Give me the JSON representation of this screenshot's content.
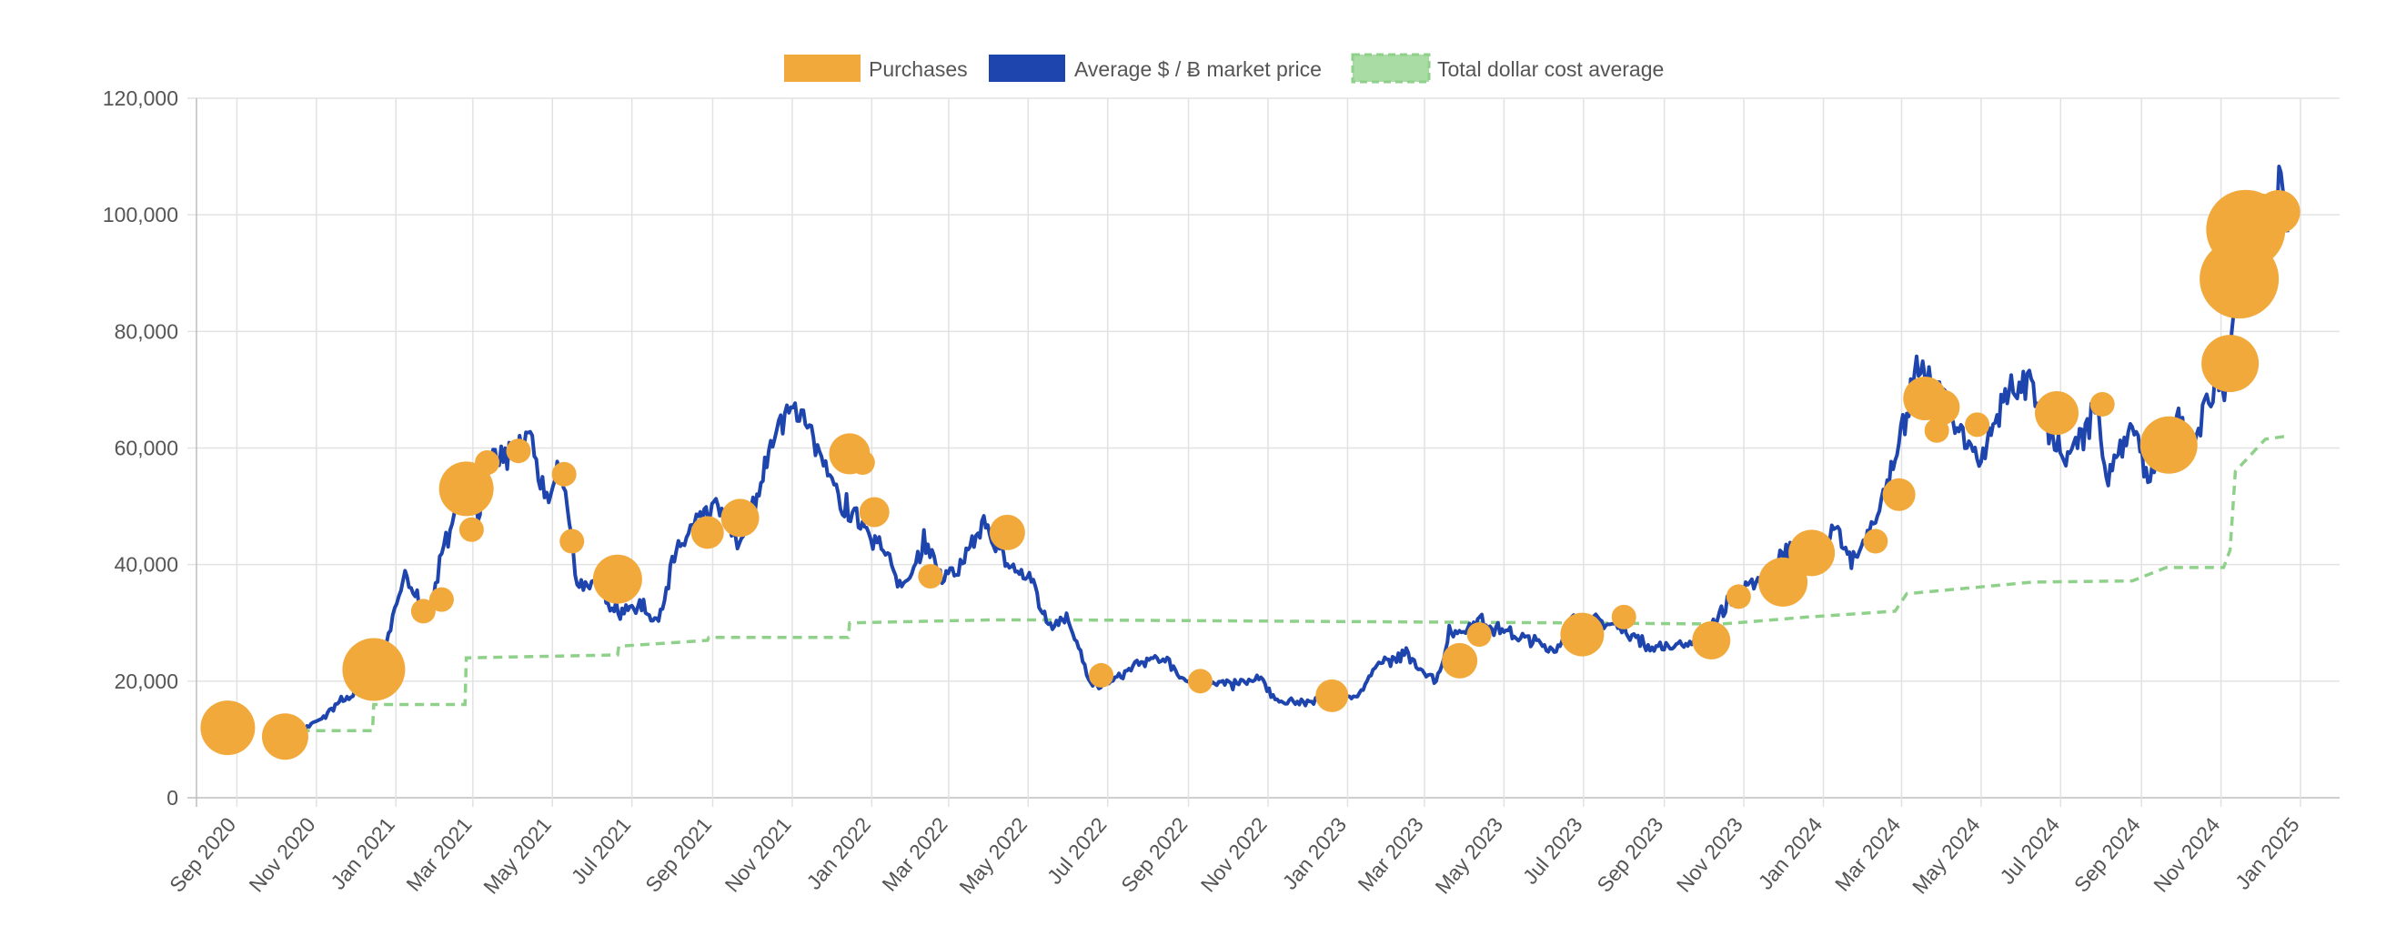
{
  "chart_data": {
    "type": "line",
    "title": "",
    "legend": {
      "position": "top-center",
      "items": [
        {
          "label": "Purchases",
          "color": "#f2a93b"
        },
        {
          "label": "Average $ / Ƀ market price",
          "color": "#1e44ad"
        },
        {
          "label": "Total dollar cost average",
          "color": "#8fd18a"
        }
      ]
    },
    "y_axis": {
      "min": 0,
      "max": 120000,
      "ticks": [
        "0",
        "20,000",
        "40,000",
        "60,000",
        "80,000",
        "100,000",
        "120,000"
      ]
    },
    "x_axis": {
      "start": "2020-08-01",
      "end": "2025-01-31",
      "tick_labels": [
        "Sep 2020",
        "Nov 2020",
        "Jan 2021",
        "Mar 2021",
        "May 2021",
        "Jul 2021",
        "Sep 2021",
        "Nov 2021",
        "Jan 2022",
        "Mar 2022",
        "May 2022",
        "Jul 2022",
        "Sep 2022",
        "Nov 2022",
        "Jan 2023",
        "Mar 2023",
        "May 2023",
        "Jul 2023",
        "Sep 2023",
        "Nov 2023",
        "Jan 2024",
        "Mar 2024",
        "May 2024",
        "Jul 2024",
        "Sep 2024",
        "Nov 2024",
        "Jan 2025"
      ],
      "tick_dates": [
        "2020-09-01",
        "2020-11-01",
        "2021-01-01",
        "2021-03-01",
        "2021-05-01",
        "2021-07-01",
        "2021-09-01",
        "2021-11-01",
        "2022-01-01",
        "2022-03-01",
        "2022-05-01",
        "2022-07-01",
        "2022-09-01",
        "2022-11-01",
        "2023-01-01",
        "2023-03-01",
        "2023-05-01",
        "2023-07-01",
        "2023-09-01",
        "2023-11-01",
        "2024-01-01",
        "2024-03-01",
        "2024-05-01",
        "2024-07-01",
        "2024-09-01",
        "2024-11-01",
        "2025-01-01"
      ]
    },
    "series": [
      {
        "name": "Average $ / Ƀ market price",
        "type": "line",
        "color": "#1e44ad",
        "points": [
          [
            "2020-10-20",
            11500
          ],
          [
            "2020-11-05",
            13500
          ],
          [
            "2020-11-20",
            16500
          ],
          [
            "2020-12-05",
            18500
          ],
          [
            "2020-12-20",
            23000
          ],
          [
            "2021-01-08",
            38000
          ],
          [
            "2021-01-25",
            31000
          ],
          [
            "2021-02-10",
            45000
          ],
          [
            "2021-02-21",
            57000
          ],
          [
            "2021-03-05",
            48000
          ],
          [
            "2021-03-15",
            59000
          ],
          [
            "2021-04-01",
            58000
          ],
          [
            "2021-04-14",
            63000
          ],
          [
            "2021-04-25",
            50000
          ],
          [
            "2021-05-08",
            57000
          ],
          [
            "2021-05-20",
            37000
          ],
          [
            "2021-06-05",
            36000
          ],
          [
            "2021-06-22",
            32000
          ],
          [
            "2021-07-10",
            33000
          ],
          [
            "2021-07-20",
            30000
          ],
          [
            "2021-08-01",
            40000
          ],
          [
            "2021-08-15",
            46000
          ],
          [
            "2021-09-05",
            50000
          ],
          [
            "2021-09-20",
            43000
          ],
          [
            "2021-10-05",
            52000
          ],
          [
            "2021-10-20",
            64000
          ],
          [
            "2021-11-08",
            67000
          ],
          [
            "2021-11-25",
            57000
          ],
          [
            "2021-12-08",
            50000
          ],
          [
            "2021-12-28",
            47000
          ],
          [
            "2022-01-10",
            42000
          ],
          [
            "2022-01-24",
            36000
          ],
          [
            "2022-02-10",
            44000
          ],
          [
            "2022-02-24",
            38000
          ],
          [
            "2022-03-10",
            39000
          ],
          [
            "2022-03-28",
            47000
          ],
          [
            "2022-04-15",
            40000
          ],
          [
            "2022-05-05",
            37000
          ],
          [
            "2022-05-15",
            30000
          ],
          [
            "2022-06-01",
            31000
          ],
          [
            "2022-06-18",
            19000
          ],
          [
            "2022-07-05",
            20000
          ],
          [
            "2022-07-25",
            23000
          ],
          [
            "2022-08-14",
            24000
          ],
          [
            "2022-08-30",
            20000
          ],
          [
            "2022-09-15",
            20000
          ],
          [
            "2022-10-05",
            19500
          ],
          [
            "2022-10-25",
            20500
          ],
          [
            "2022-11-08",
            16500
          ],
          [
            "2022-11-25",
            16500
          ],
          [
            "2022-12-20",
            16800
          ],
          [
            "2023-01-10",
            17500
          ],
          [
            "2023-01-25",
            23000
          ],
          [
            "2023-02-15",
            24500
          ],
          [
            "2023-03-10",
            20000
          ],
          [
            "2023-03-20",
            28000
          ],
          [
            "2023-04-14",
            30500
          ],
          [
            "2023-05-01",
            28500
          ],
          [
            "2023-05-20",
            27000
          ],
          [
            "2023-06-10",
            25500
          ],
          [
            "2023-06-22",
            30500
          ],
          [
            "2023-07-15",
            30000
          ],
          [
            "2023-08-01",
            29200
          ],
          [
            "2023-08-18",
            26000
          ],
          [
            "2023-09-10",
            25800
          ],
          [
            "2023-10-01",
            27500
          ],
          [
            "2023-10-24",
            34500
          ],
          [
            "2023-11-15",
            37000
          ],
          [
            "2023-12-08",
            43500
          ],
          [
            "2023-12-25",
            42500
          ],
          [
            "2024-01-12",
            46000
          ],
          [
            "2024-01-24",
            40000
          ],
          [
            "2024-02-10",
            47000
          ],
          [
            "2024-02-28",
            62000
          ],
          [
            "2024-03-14",
            73000
          ],
          [
            "2024-03-30",
            70000
          ],
          [
            "2024-04-17",
            62000
          ],
          [
            "2024-05-01",
            58000
          ],
          [
            "2024-05-21",
            70000
          ],
          [
            "2024-06-07",
            71000
          ],
          [
            "2024-06-25",
            61000
          ],
          [
            "2024-07-05",
            57000
          ],
          [
            "2024-07-29",
            68000
          ],
          [
            "2024-08-05",
            54000
          ],
          [
            "2024-08-25",
            64000
          ],
          [
            "2024-09-06",
            54000
          ],
          [
            "2024-09-28",
            65500
          ],
          [
            "2024-10-10",
            60500
          ],
          [
            "2024-10-29",
            72000
          ],
          [
            "2024-11-05",
            69000
          ],
          [
            "2024-11-12",
            88000
          ],
          [
            "2024-11-22",
            98000
          ],
          [
            "2024-12-05",
            97000
          ],
          [
            "2024-12-17",
            106000
          ],
          [
            "2024-12-22",
            97000
          ]
        ]
      },
      {
        "name": "Total dollar cost average",
        "type": "step-dashed",
        "color": "#8fd18a",
        "points": [
          [
            "2020-10-20",
            11500
          ],
          [
            "2020-12-14",
            11500
          ],
          [
            "2020-12-15",
            16000
          ],
          [
            "2021-02-23",
            16000
          ],
          [
            "2021-02-24",
            24000
          ],
          [
            "2021-06-20",
            24500
          ],
          [
            "2021-06-21",
            26000
          ],
          [
            "2021-08-28",
            27000
          ],
          [
            "2021-08-29",
            27500
          ],
          [
            "2021-12-14",
            27500
          ],
          [
            "2021-12-15",
            30000
          ],
          [
            "2022-04-01",
            30500
          ],
          [
            "2022-06-01",
            30500
          ],
          [
            "2023-06-22",
            30000
          ],
          [
            "2023-10-15",
            29800
          ],
          [
            "2023-12-20",
            31000
          ],
          [
            "2024-02-25",
            32000
          ],
          [
            "2024-03-05",
            35000
          ],
          [
            "2024-06-10",
            37000
          ],
          [
            "2024-08-25",
            37200
          ],
          [
            "2024-09-20",
            39500
          ],
          [
            "2024-11-03",
            39500
          ],
          [
            "2024-11-08",
            42500
          ],
          [
            "2024-11-12",
            56000
          ],
          [
            "2024-12-05",
            61500
          ],
          [
            "2024-12-20",
            62000
          ]
        ]
      },
      {
        "name": "Purchases",
        "type": "bubble",
        "color": "#f2a93b",
        "points": [
          {
            "date": "2020-08-25",
            "value": 12000,
            "size": 1.0
          },
          {
            "date": "2020-10-08",
            "value": 10500,
            "size": 0.85
          },
          {
            "date": "2020-12-15",
            "value": 22000,
            "size": 1.15
          },
          {
            "date": "2021-01-22",
            "value": 32000,
            "size": 0.45
          },
          {
            "date": "2021-02-05",
            "value": 34000,
            "size": 0.45
          },
          {
            "date": "2021-02-24",
            "value": 53000,
            "size": 1.0
          },
          {
            "date": "2021-02-28",
            "value": 46000,
            "size": 0.45
          },
          {
            "date": "2021-03-12",
            "value": 57500,
            "size": 0.45
          },
          {
            "date": "2021-04-05",
            "value": 59500,
            "size": 0.45
          },
          {
            "date": "2021-05-10",
            "value": 55500,
            "size": 0.45
          },
          {
            "date": "2021-05-16",
            "value": 44000,
            "size": 0.45
          },
          {
            "date": "2021-06-20",
            "value": 37500,
            "size": 0.9
          },
          {
            "date": "2021-08-28",
            "value": 45500,
            "size": 0.6
          },
          {
            "date": "2021-09-22",
            "value": 48000,
            "size": 0.7
          },
          {
            "date": "2021-12-15",
            "value": 59000,
            "size": 0.75
          },
          {
            "date": "2021-12-25",
            "value": 57500,
            "size": 0.45
          },
          {
            "date": "2022-01-03",
            "value": 49000,
            "size": 0.55
          },
          {
            "date": "2022-02-15",
            "value": 38000,
            "size": 0.45
          },
          {
            "date": "2022-04-15",
            "value": 45500,
            "size": 0.65
          },
          {
            "date": "2022-06-26",
            "value": 21000,
            "size": 0.45
          },
          {
            "date": "2022-09-10",
            "value": 20000,
            "size": 0.45
          },
          {
            "date": "2022-12-20",
            "value": 17500,
            "size": 0.6
          },
          {
            "date": "2023-03-28",
            "value": 23500,
            "size": 0.65
          },
          {
            "date": "2023-04-12",
            "value": 28000,
            "size": 0.45
          },
          {
            "date": "2023-06-30",
            "value": 28000,
            "size": 0.8
          },
          {
            "date": "2023-08-01",
            "value": 31000,
            "size": 0.45
          },
          {
            "date": "2023-10-07",
            "value": 27000,
            "size": 0.7
          },
          {
            "date": "2023-10-28",
            "value": 34500,
            "size": 0.45
          },
          {
            "date": "2023-12-01",
            "value": 37000,
            "size": 0.9
          },
          {
            "date": "2023-12-23",
            "value": 42000,
            "size": 0.85
          },
          {
            "date": "2024-02-10",
            "value": 44000,
            "size": 0.45
          },
          {
            "date": "2024-02-28",
            "value": 52000,
            "size": 0.6
          },
          {
            "date": "2024-03-19",
            "value": 68500,
            "size": 0.8
          },
          {
            "date": "2024-03-28",
            "value": 63000,
            "size": 0.45
          },
          {
            "date": "2024-04-01",
            "value": 67000,
            "size": 0.65
          },
          {
            "date": "2024-04-28",
            "value": 64000,
            "size": 0.45
          },
          {
            "date": "2024-06-28",
            "value": 66000,
            "size": 0.8
          },
          {
            "date": "2024-08-02",
            "value": 67500,
            "size": 0.45
          },
          {
            "date": "2024-09-22",
            "value": 60500,
            "size": 1.05
          },
          {
            "date": "2024-11-08",
            "value": 74500,
            "size": 1.05
          },
          {
            "date": "2024-11-15",
            "value": 89000,
            "size": 1.45
          },
          {
            "date": "2024-11-20",
            "value": 97500,
            "size": 1.45
          },
          {
            "date": "2024-12-01",
            "value": 99000,
            "size": 1.0
          },
          {
            "date": "2024-12-15",
            "value": 100500,
            "size": 0.8
          }
        ]
      }
    ]
  }
}
